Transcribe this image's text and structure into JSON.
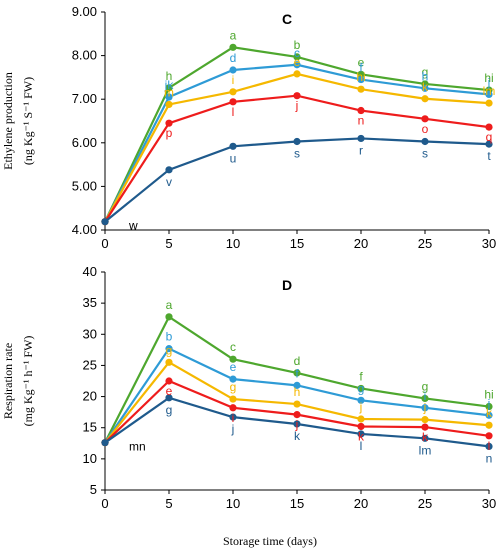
{
  "x_axis_label": "Storage time (days)",
  "chart_data": [
    {
      "type": "line",
      "title": "C",
      "ylabel_line1": "Ethylene production",
      "ylabel_line2": "(ng Kg⁻¹ S⁻¹ FW)",
      "xlabel": "Storage time (days)",
      "xlim": [
        0,
        30
      ],
      "ylim": [
        4.0,
        9.0
      ],
      "x_ticks": [
        0,
        5,
        10,
        15,
        20,
        25,
        30
      ],
      "y_ticks": [
        "4.00",
        "5.00",
        "6.00",
        "7.00",
        "8.00",
        "9.00"
      ],
      "grid": false,
      "legend": "none",
      "x": [
        0,
        5,
        10,
        15,
        20,
        25,
        30
      ],
      "series": [
        {
          "color": "#4ea72e",
          "marker": "circle",
          "values": [
            4.19,
            7.26,
            8.19,
            7.97,
            7.57,
            7.35,
            7.21
          ],
          "letters": [
            "",
            "h",
            "a",
            "b",
            "e",
            "g",
            "hi"
          ]
        },
        {
          "color": "#2e9bd6",
          "marker": "circle",
          "values": [
            4.19,
            7.05,
            7.67,
            7.79,
            7.45,
            7.25,
            7.11
          ],
          "letters": [
            "",
            "jk",
            "d",
            "c",
            "f",
            "h",
            "j"
          ]
        },
        {
          "color": "#f5b800",
          "marker": "circle",
          "values": [
            4.19,
            6.88,
            7.17,
            7.58,
            7.23,
            7.01,
            6.91
          ],
          "letters": [
            "",
            "m",
            "i",
            "e",
            "hi",
            "k",
            "lm"
          ]
        },
        {
          "color": "#ee1c1c",
          "marker": "circle",
          "values": [
            4.19,
            6.45,
            6.94,
            7.08,
            6.74,
            6.55,
            6.36
          ],
          "letters": [
            "",
            "p",
            "l",
            "j",
            "n",
            "o",
            "q"
          ]
        },
        {
          "color": "#1f5a8c",
          "marker": "circle",
          "values": [
            4.19,
            5.38,
            5.92,
            6.03,
            6.1,
            6.03,
            5.97
          ],
          "letters": [
            "w",
            "v",
            "u",
            "s",
            "r",
            "s",
            "t"
          ]
        }
      ]
    },
    {
      "type": "line",
      "title": "D",
      "ylabel_line1": "Respiration rate",
      "ylabel_line2": "(mg Kg⁻¹ h⁻¹ FW)",
      "xlabel": "Storage time (days)",
      "xlim": [
        0,
        30
      ],
      "ylim": [
        5,
        40
      ],
      "x_ticks": [
        0,
        5,
        10,
        15,
        20,
        25,
        30
      ],
      "y_ticks": [
        "5",
        "10",
        "15",
        "20",
        "25",
        "30",
        "35",
        "40"
      ],
      "grid": false,
      "legend": "none",
      "x": [
        0,
        5,
        10,
        15,
        20,
        25,
        30
      ],
      "series": [
        {
          "color": "#4ea72e",
          "marker": "circle",
          "values": [
            12.6,
            32.8,
            26.0,
            23.8,
            21.3,
            19.7,
            18.4
          ],
          "letters": [
            "",
            "a",
            "c",
            "d",
            "f",
            "g",
            "hi"
          ]
        },
        {
          "color": "#2e9bd6",
          "marker": "circle",
          "values": [
            12.6,
            27.7,
            22.8,
            21.8,
            19.4,
            18.2,
            17.0
          ],
          "letters": [
            "",
            "b",
            "e",
            "f",
            "g",
            "i",
            "j"
          ]
        },
        {
          "color": "#f5b800",
          "marker": "circle",
          "values": [
            12.6,
            25.5,
            19.6,
            18.8,
            16.4,
            16.3,
            15.4
          ],
          "letters": [
            "",
            "g",
            "g",
            "h",
            "j",
            "j",
            "k"
          ]
        },
        {
          "color": "#ee1c1c",
          "marker": "circle",
          "values": [
            12.6,
            22.5,
            18.2,
            17.1,
            15.2,
            15.1,
            13.7
          ],
          "letters": [
            "",
            "e",
            "i",
            "j",
            "k",
            "k",
            "l"
          ]
        },
        {
          "color": "#1f5a8c",
          "marker": "circle",
          "values": [
            12.6,
            19.8,
            16.7,
            15.6,
            14.0,
            13.3,
            12.0
          ],
          "letters": [
            "mn",
            "g",
            "j",
            "k",
            "l",
            "lm",
            "n"
          ]
        }
      ]
    }
  ]
}
